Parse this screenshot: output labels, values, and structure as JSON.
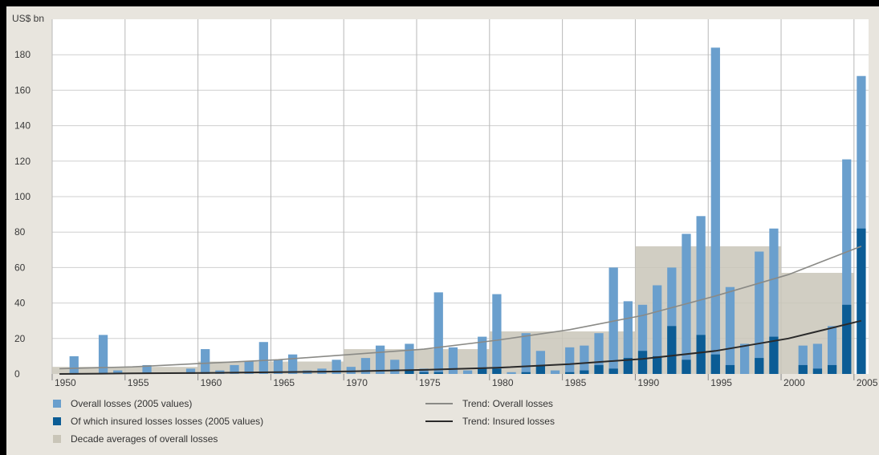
{
  "chart_data": {
    "type": "bar",
    "ylabel": "US$ bn",
    "ylim": [
      0,
      200
    ],
    "yticks": [
      0,
      20,
      40,
      60,
      80,
      100,
      120,
      140,
      160,
      180
    ],
    "xticks": [
      1950,
      1955,
      1960,
      1965,
      1970,
      1975,
      1980,
      1985,
      1990,
      1995,
      2000,
      2005
    ],
    "xlim": [
      1949.5,
      2005.5
    ],
    "grid": "vertical every 5 years, horizontal every 20",
    "years": [
      1950,
      1951,
      1952,
      1953,
      1954,
      1955,
      1956,
      1957,
      1958,
      1959,
      1960,
      1961,
      1962,
      1963,
      1964,
      1965,
      1966,
      1967,
      1968,
      1969,
      1970,
      1971,
      1972,
      1973,
      1974,
      1975,
      1976,
      1977,
      1978,
      1979,
      1980,
      1981,
      1982,
      1983,
      1984,
      1985,
      1986,
      1987,
      1988,
      1989,
      1990,
      1991,
      1992,
      1993,
      1994,
      1995,
      1996,
      1997,
      1998,
      1999,
      2000,
      2001,
      2002,
      2003,
      2004,
      2005
    ],
    "series": [
      {
        "name": "Overall losses (2005 values)",
        "color": "#6a9fcd",
        "values": [
          0,
          10,
          0,
          22,
          2,
          0,
          5,
          0,
          0,
          3,
          14,
          2,
          5,
          7,
          18,
          8,
          11,
          2,
          3,
          8,
          4,
          9,
          16,
          8,
          17,
          3,
          46,
          15,
          2,
          21,
          45,
          1,
          23,
          13,
          2,
          15,
          16,
          23,
          60,
          41,
          39,
          50,
          60,
          79,
          89,
          184,
          49,
          17,
          69,
          82,
          0,
          16,
          17,
          27,
          121,
          168
        ]
      },
      {
        "name": "Of which insured losses losses (2005 values)",
        "color": "#0b5c95",
        "values": [
          0,
          0,
          0,
          0,
          0,
          0,
          0,
          0,
          0,
          0,
          0,
          0,
          0,
          0,
          0,
          0,
          0,
          0,
          0,
          0,
          0,
          0,
          0,
          0,
          2,
          1,
          1,
          0,
          0,
          3,
          3,
          0,
          1,
          5,
          0,
          1,
          2,
          5,
          3,
          9,
          13,
          10,
          27,
          8,
          22,
          11,
          5,
          0,
          9,
          21,
          0,
          5,
          3,
          5,
          39,
          82
        ]
      }
    ],
    "decade_averages": {
      "name": "Decade averages of overall losses",
      "color": "#c9c5b8",
      "segments": [
        {
          "start": 1950,
          "end": 1959,
          "value": 4
        },
        {
          "start": 1960,
          "end": 1969,
          "value": 7
        },
        {
          "start": 1970,
          "end": 1979,
          "value": 14
        },
        {
          "start": 1980,
          "end": 1989,
          "value": 24
        },
        {
          "start": 1990,
          "end": 1999,
          "value": 72
        },
        {
          "start": 2000,
          "end": 2004,
          "value": 57
        }
      ]
    },
    "trends": [
      {
        "name": "Trend: Overall losses",
        "color": "#8a8a86",
        "points": [
          [
            1950,
            3
          ],
          [
            1955,
            4
          ],
          [
            1960,
            6
          ],
          [
            1965,
            8
          ],
          [
            1970,
            11
          ],
          [
            1975,
            14
          ],
          [
            1980,
            19
          ],
          [
            1985,
            25
          ],
          [
            1990,
            33
          ],
          [
            1995,
            44
          ],
          [
            2000,
            56
          ],
          [
            2005,
            72
          ]
        ]
      },
      {
        "name": "Trend: Insured losses",
        "color": "#2a2a2a",
        "points": [
          [
            1950,
            0
          ],
          [
            1955,
            0.3
          ],
          [
            1960,
            0.6
          ],
          [
            1965,
            1
          ],
          [
            1970,
            1.5
          ],
          [
            1975,
            2.3
          ],
          [
            1980,
            3.5
          ],
          [
            1985,
            5.5
          ],
          [
            1990,
            8.5
          ],
          [
            1995,
            13
          ],
          [
            2000,
            20
          ],
          [
            2005,
            30
          ]
        ]
      }
    ]
  },
  "legend": {
    "overall": "Overall losses (2005 values)",
    "insured": "Of which insured losses losses (2005 values)",
    "decade": "Decade averages of overall losses",
    "trend_overall": "Trend: Overall losses",
    "trend_insured": "Trend: Insured losses"
  }
}
